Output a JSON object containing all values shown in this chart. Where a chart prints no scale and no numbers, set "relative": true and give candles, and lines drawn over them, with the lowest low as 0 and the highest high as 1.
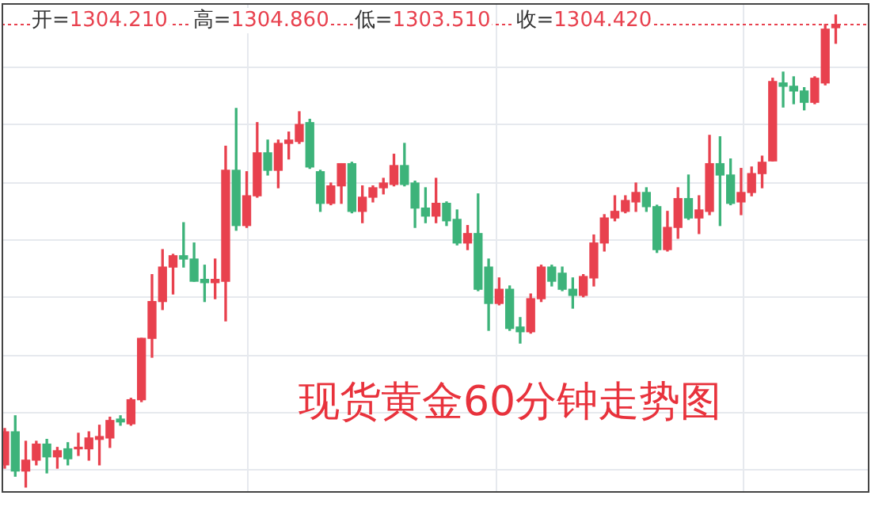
{
  "chart_data": {
    "type": "candlestick",
    "title": "现货黄金60分钟走势图",
    "relative": true,
    "grid": true,
    "legend": false,
    "tick_labels": false,
    "annotations": [
      "开=1304.210",
      "高=1304.860",
      "低=1303.510",
      "收=1304.420"
    ],
    "ref_lines": [
      {
        "axis": "y",
        "value": 0.98,
        "color": "#e8414e",
        "line_style": "dotted"
      }
    ],
    "categories": [
      null,
      null,
      null,
      null,
      null,
      null,
      null,
      null,
      null,
      null,
      null,
      null,
      null,
      null,
      null,
      null,
      null,
      null,
      null,
      null,
      null,
      null,
      null,
      null,
      null,
      null,
      null,
      null,
      null,
      null,
      null,
      null,
      null,
      null,
      null,
      null,
      null,
      null,
      null,
      null,
      null,
      null,
      null,
      null,
      null,
      null,
      null,
      null,
      null,
      null,
      null,
      null,
      null,
      null,
      null,
      null,
      null,
      null,
      null,
      null,
      null,
      null,
      null,
      null,
      null,
      null,
      null,
      null,
      null,
      null,
      null,
      null,
      null,
      null,
      null,
      null,
      null,
      null,
      null,
      null
    ],
    "ohlc": [
      [
        0.047,
        0.124,
        0.04,
        0.117
      ],
      [
        0.117,
        0.151,
        0.023,
        0.034
      ],
      [
        0.034,
        0.097,
        0,
        0.057
      ],
      [
        0.057,
        0.097,
        0.047,
        0.091
      ],
      [
        0.091,
        0.101,
        0.03,
        0.064
      ],
      [
        0.064,
        0.084,
        0.04,
        0.077
      ],
      [
        0.081,
        0.094,
        0.047,
        0.06
      ],
      [
        0.081,
        0.114,
        0.067,
        0.084
      ],
      [
        0.081,
        0.117,
        0.057,
        0.104
      ],
      [
        0.101,
        0.131,
        0.047,
        0.107
      ],
      [
        0.104,
        0.148,
        0.084,
        0.141
      ],
      [
        0.144,
        0.151,
        0.131,
        0.138
      ],
      [
        0.134,
        0.188,
        0.131,
        0.185
      ],
      [
        0.185,
        0.315,
        0.181,
        0.315
      ],
      [
        0.315,
        0.45,
        0.275,
        0.393
      ],
      [
        0.393,
        0.503,
        0.376,
        0.466
      ],
      [
        0.466,
        0.493,
        0.409,
        0.49
      ],
      [
        0.49,
        0.56,
        0.466,
        0.483
      ],
      [
        0.483,
        0.517,
        0.436,
        0.436
      ],
      [
        0.44,
        0.47,
        0.393,
        0.433
      ],
      [
        0.433,
        0.483,
        0.399,
        0.44
      ],
      [
        0.436,
        0.722,
        0.352,
        0.671
      ],
      [
        0.671,
        0.802,
        0.544,
        0.554
      ],
      [
        0.554,
        0.668,
        0.55,
        0.617
      ],
      [
        0.617,
        0.772,
        0.614,
        0.708
      ],
      [
        0.708,
        0.735,
        0.661,
        0.671
      ],
      [
        0.671,
        0.735,
        0.634,
        0.728
      ],
      [
        0.728,
        0.752,
        0.695,
        0.735
      ],
      [
        0.732,
        0.795,
        0.728,
        0.768
      ],
      [
        0.772,
        0.779,
        0.675,
        0.678
      ],
      [
        0.668,
        0.671,
        0.584,
        0.601
      ],
      [
        0.601,
        0.644,
        0.598,
        0.638
      ],
      [
        0.638,
        0.685,
        0.601,
        0.685
      ],
      [
        0.685,
        0.688,
        0.581,
        0.584
      ],
      [
        0.584,
        0.638,
        0.56,
        0.614
      ],
      [
        0.614,
        0.638,
        0.604,
        0.634
      ],
      [
        0.634,
        0.654,
        0.621,
        0.644
      ],
      [
        0.641,
        0.705,
        0.638,
        0.681
      ],
      [
        0.681,
        0.728,
        0.638,
        0.641
      ],
      [
        0.644,
        0.648,
        0.55,
        0.591
      ],
      [
        0.591,
        0.634,
        0.56,
        0.574
      ],
      [
        0.574,
        0.654,
        0.56,
        0.601
      ],
      [
        0.601,
        0.604,
        0.554,
        0.564
      ],
      [
        0.567,
        0.587,
        0.513,
        0.517
      ],
      [
        0.517,
        0.554,
        0.503,
        0.537
      ],
      [
        0.537,
        0.621,
        0.416,
        0.419
      ],
      [
        0.466,
        0.483,
        0.332,
        0.389
      ],
      [
        0.389,
        0.443,
        0.386,
        0.419
      ],
      [
        0.419,
        0.426,
        0.332,
        0.336
      ],
      [
        0.339,
        0.359,
        0.305,
        0.329
      ],
      [
        0.329,
        0.409,
        0.326,
        0.399
      ],
      [
        0.399,
        0.47,
        0.393,
        0.466
      ],
      [
        0.466,
        0.47,
        0.426,
        0.436
      ],
      [
        0.453,
        0.466,
        0.416,
        0.419
      ],
      [
        0.419,
        0.443,
        0.379,
        0.406
      ],
      [
        0.406,
        0.45,
        0.403,
        0.446
      ],
      [
        0.443,
        0.534,
        0.426,
        0.517
      ],
      [
        0.517,
        0.577,
        0.5,
        0.57
      ],
      [
        0.57,
        0.617,
        0.564,
        0.584
      ],
      [
        0.584,
        0.617,
        0.581,
        0.607
      ],
      [
        0.604,
        0.644,
        0.584,
        0.624
      ],
      [
        0.624,
        0.634,
        0.584,
        0.594
      ],
      [
        0.594,
        0.597,
        0.497,
        0.503
      ],
      [
        0.503,
        0.584,
        0.5,
        0.55
      ],
      [
        0.55,
        0.634,
        0.527,
        0.611
      ],
      [
        0.611,
        0.661,
        0.567,
        0.57
      ],
      [
        0.57,
        0.617,
        0.537,
        0.587
      ],
      [
        0.584,
        0.745,
        0.577,
        0.685
      ],
      [
        0.685,
        0.742,
        0.554,
        0.661
      ],
      [
        0.661,
        0.695,
        0.598,
        0.601
      ],
      [
        0.604,
        0.675,
        0.577,
        0.624
      ],
      [
        0.624,
        0.678,
        0.617,
        0.664
      ],
      [
        0.664,
        0.701,
        0.634,
        0.688
      ],
      [
        0.691,
        0.866,
        0.691,
        0.859
      ],
      [
        0.856,
        0.879,
        0.805,
        0.849
      ],
      [
        0.849,
        0.869,
        0.812,
        0.839
      ],
      [
        0.839,
        0.846,
        0.799,
        0.815
      ],
      [
        0.815,
        0.869,
        0.812,
        0.866
      ],
      [
        0.856,
        0.98,
        0.852,
        0.97
      ],
      [
        0.973,
        1,
        0.94,
        0.98
      ]
    ],
    "colors": [
      "#e8414e",
      "#3db37a",
      "#e8414e",
      "#e8414e",
      "#3db37a",
      "#e8414e",
      "#3db37a",
      "#e8414e",
      "#e8414e",
      "#e8414e",
      "#e8414e",
      "#3db37a",
      "#e8414e",
      "#e8414e",
      "#e8414e",
      "#e8414e",
      "#e8414e",
      "#3db37a",
      "#3db37a",
      "#3db37a",
      "#e8414e",
      "#e8414e",
      "#3db37a",
      "#e8414e",
      "#e8414e",
      "#3db37a",
      "#e8414e",
      "#e8414e",
      "#e8414e",
      "#3db37a",
      "#3db37a",
      "#e8414e",
      "#e8414e",
      "#3db37a",
      "#e8414e",
      "#e8414e",
      "#e8414e",
      "#e8414e",
      "#3db37a",
      "#3db37a",
      "#3db37a",
      "#e8414e",
      "#3db37a",
      "#3db37a",
      "#e8414e",
      "#3db37a",
      "#3db37a",
      "#e8414e",
      "#3db37a",
      "#3db37a",
      "#e8414e",
      "#e8414e",
      "#3db37a",
      "#3db37a",
      "#3db37a",
      "#e8414e",
      "#e8414e",
      "#e8414e",
      "#e8414e",
      "#e8414e",
      "#e8414e",
      "#3db37a",
      "#3db37a",
      "#e8414e",
      "#e8414e",
      "#3db37a",
      "#e8414e",
      "#e8414e",
      "#3db37a",
      "#3db37a",
      "#e8414e",
      "#e8414e",
      "#e8414e",
      "#e8414e",
      "#3db37a",
      "#3db37a",
      "#3db37a",
      "#e8414e",
      "#e8414e",
      "#e8414e"
    ]
  }
}
